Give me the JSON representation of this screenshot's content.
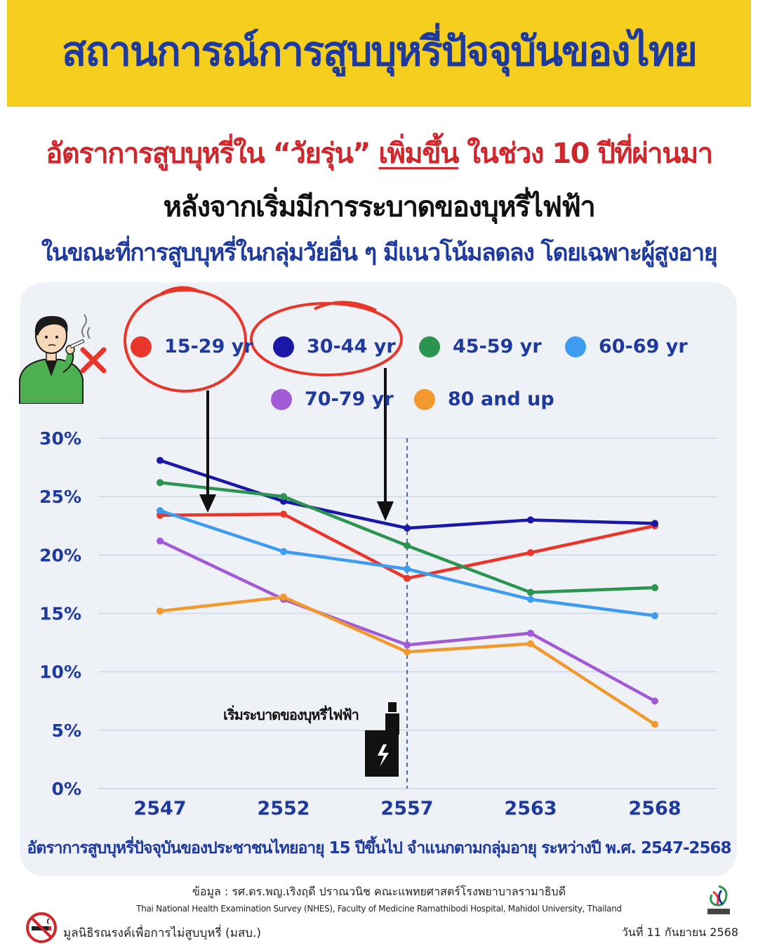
{
  "header": {
    "title": "สถานการณ์การสูบบุหรี่ปัจจุบันของไทย",
    "line1_pre": "อัตราการสูบบุหรี่ใน “วัยรุ่น” ",
    "line1_highlight": "เพิ่มขึ้น",
    "line1_post": " ในช่วง 10 ปีที่ผ่านมา",
    "line2": "หลังจากเริ่มมีการระบาดของบุหรี่ไฟฟ้า",
    "line3": "ในขณะที่การสูบบุหรี่ในกลุ่มวัยอื่น ๆ มีแนวโน้มลดลง โดยเฉพาะผู้สูงอายุ"
  },
  "chart_data": {
    "type": "line",
    "x": [
      "2547",
      "2552",
      "2557",
      "2563",
      "2568"
    ],
    "ylim": [
      0,
      30
    ],
    "yticks": [
      "0%",
      "5%",
      "10%",
      "15%",
      "20%",
      "25%",
      "30%"
    ],
    "grid": true,
    "legend_position": "top",
    "series": [
      {
        "name": "15-29 yr",
        "color": "#e8362b",
        "values": [
          23.4,
          23.5,
          18.0,
          20.2,
          22.5
        ]
      },
      {
        "name": "30-44 yr",
        "color": "#1b18a8",
        "values": [
          28.1,
          24.6,
          22.3,
          23.0,
          22.7
        ]
      },
      {
        "name": "45-59 yr",
        "color": "#2a9450",
        "values": [
          26.2,
          25.0,
          20.8,
          16.8,
          17.2
        ]
      },
      {
        "name": "60-69 yr",
        "color": "#3d9bf0",
        "values": [
          23.8,
          20.3,
          18.8,
          16.2,
          14.8
        ]
      },
      {
        "name": "70-79 yr",
        "color": "#a25bd6",
        "values": [
          21.2,
          16.2,
          12.3,
          13.3,
          7.5
        ]
      },
      {
        "name": "80 and up",
        "color": "#f2992e",
        "values": [
          15.2,
          16.4,
          11.7,
          12.4,
          5.5
        ]
      }
    ],
    "annotation": "เริ่มระบาดของบุหรี่ไฟฟ้า",
    "annotation_x": "2557",
    "caption": "อัตราการสูบบุหรี่ปัจจุบันของประชาชนไทยอายุ 15 ปีขึ้นไป จำแนกตามกลุ่มอายุ ระหว่างปี พ.ศ. 2547-2568"
  },
  "footer": {
    "source_line1": "ข้อมูล : รศ.ดร.พญ.เริงฤดี ปราณวนิช คณะแพทยศาสตร์โรงพยาบาลรามาธิบดี",
    "source_line2": "Thai National Health Examination Survey (NHES), Faculty of Medicine Ramathibodi Hospital, Mahidol University, Thailand",
    "foundation": "มูลนิธิรณรงค์เพื่อการไม่สูบบุหรี่ (มสบ.)",
    "date": "วันที่ 11 กันยายน 2568"
  },
  "icons": [
    "smoking-person-icon",
    "no-smoking-icon",
    "vape-device-icon",
    "partner-logo-icon"
  ]
}
